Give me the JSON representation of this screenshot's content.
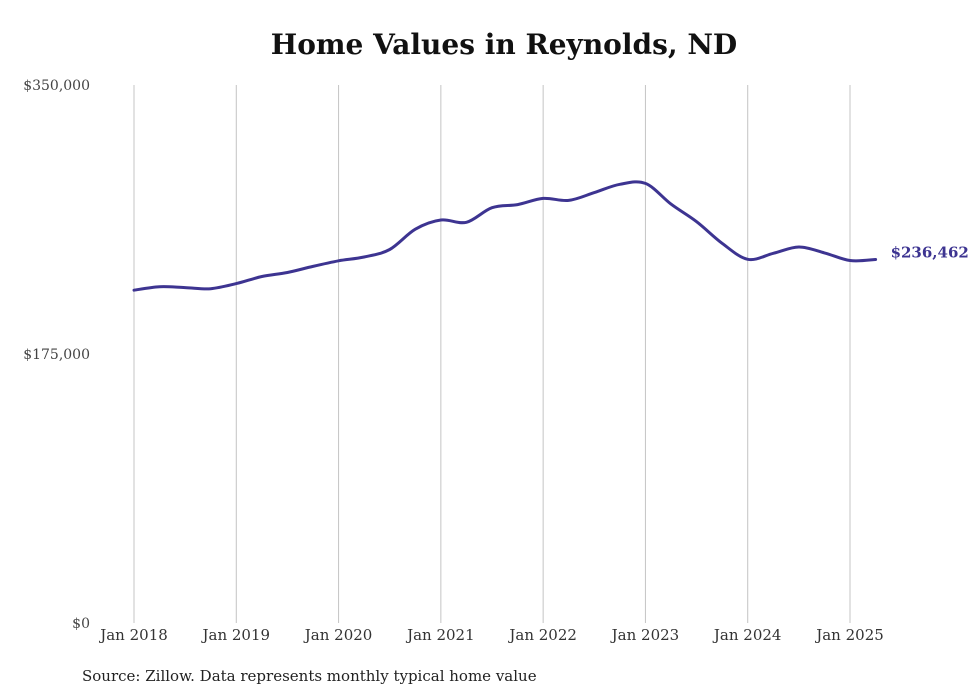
{
  "colors": {
    "line": "#3d3491",
    "grid": "#c4c4c4",
    "background": "#ffffff"
  },
  "chart_data": {
    "type": "line",
    "title": "Home Values in Reynolds, ND",
    "source": "Source: Zillow. Data represents monthly typical home value",
    "xlabel": "",
    "ylabel": "",
    "ylim": [
      0,
      350000
    ],
    "yticks": [
      {
        "value": 0,
        "label": "$0"
      },
      {
        "value": 175000,
        "label": "$175,000"
      },
      {
        "value": 350000,
        "label": "$350,000"
      }
    ],
    "xticks": [
      {
        "year": 2018,
        "label": "Jan 2018"
      },
      {
        "year": 2019,
        "label": "Jan 2019"
      },
      {
        "year": 2020,
        "label": "Jan 2020"
      },
      {
        "year": 2021,
        "label": "Jan 2021"
      },
      {
        "year": 2022,
        "label": "Jan 2022"
      },
      {
        "year": 2023,
        "label": "Jan 2023"
      },
      {
        "year": 2024,
        "label": "Jan 2024"
      },
      {
        "year": 2025,
        "label": "Jan 2025"
      }
    ],
    "grid": "vertical",
    "end_label": "$236,462",
    "series": [
      {
        "x": [
          "2018-01",
          "2018-04",
          "2018-07",
          "2018-10",
          "2019-01",
          "2019-04",
          "2019-07",
          "2019-10",
          "2020-01",
          "2020-04",
          "2020-07",
          "2020-10",
          "2021-01",
          "2021-04",
          "2021-07",
          "2021-10",
          "2022-01",
          "2022-04",
          "2022-07",
          "2022-10",
          "2023-01",
          "2023-04",
          "2023-07",
          "2023-10",
          "2024-01",
          "2024-04",
          "2024-07",
          "2024-10",
          "2025-01",
          "2025-04"
        ],
        "values": [
          216500,
          218800,
          218200,
          217500,
          220800,
          225400,
          228000,
          232000,
          235600,
          238100,
          243000,
          256200,
          262200,
          260700,
          270200,
          272200,
          276200,
          274900,
          280000,
          285400,
          286000,
          272500,
          261100,
          247000,
          236600,
          240500,
          244600,
          240800,
          235800,
          236462
        ]
      }
    ]
  }
}
